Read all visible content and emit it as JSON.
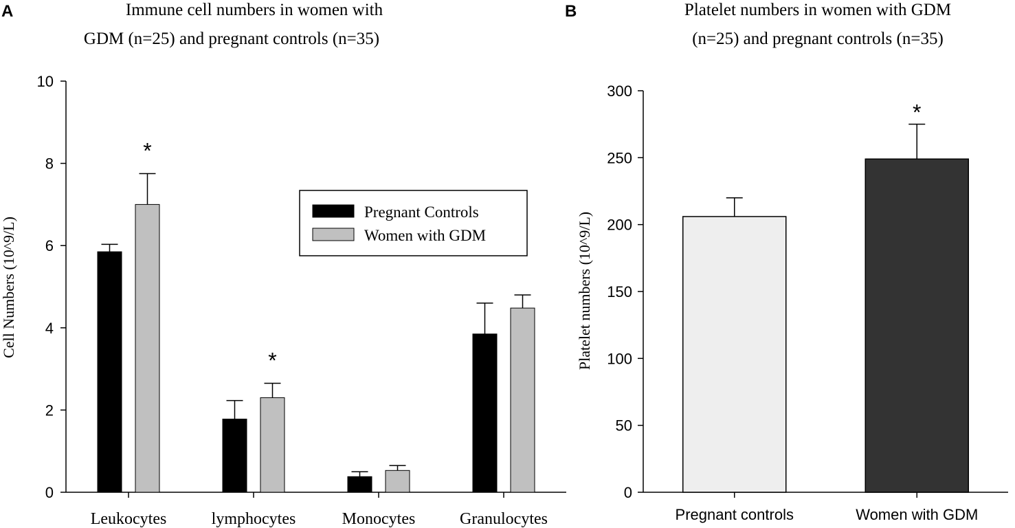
{
  "panel_a": {
    "label": "A",
    "legend": [
      "Pregnant Controls",
      "Women with GDM"
    ]
  },
  "panel_b": {
    "label": "B"
  },
  "colors": {
    "controls_a": "#000000",
    "gdm_a": "#c0c0c0",
    "controls_b": "#eeeeee",
    "gdm_b": "#333333"
  },
  "chart_data": [
    {
      "type": "bar",
      "title": "Immune cell numbers in women with GDM (n=25) and pregnant controls (n=35)",
      "title_lines": [
        "Immune cell numbers in women with",
        "GDM (n=25) and pregnant controls (n=35)"
      ],
      "xlabel": "",
      "ylabel": "Cell Numbers (10^9/L)",
      "ylim": [
        0,
        10
      ],
      "yticks": [
        "0",
        "2",
        "4",
        "6",
        "8",
        "10"
      ],
      "categories": [
        "Leukocytes",
        "lymphocytes",
        "Monocytes",
        "Granulocytes"
      ],
      "series": [
        {
          "name": "Pregnant Controls",
          "values": [
            5.85,
            1.78,
            0.38,
            3.85
          ],
          "errors": [
            0.18,
            0.45,
            0.12,
            0.75
          ],
          "significant": [
            false,
            false,
            false,
            false
          ]
        },
        {
          "name": "Women with GDM",
          "values": [
            7.0,
            2.3,
            0.53,
            4.48
          ],
          "errors": [
            0.75,
            0.35,
            0.12,
            0.32
          ],
          "significant": [
            true,
            true,
            false,
            false
          ]
        }
      ],
      "significance_marker": "*"
    },
    {
      "type": "bar",
      "title": "Platelet numbers in women with GDM (n=25) and pregnant controls (n=35)",
      "title_lines": [
        "Platelet numbers in women with GDM",
        "(n=25) and pregnant controls (n=35)"
      ],
      "xlabel": "",
      "ylabel": "Platelet numbers (10^9/L)",
      "ylim": [
        0,
        300
      ],
      "yticks": [
        "0",
        "50",
        "100",
        "150",
        "200",
        "250",
        "300"
      ],
      "categories": [
        "Pregnant controls",
        "Women with GDM"
      ],
      "values": [
        206,
        249
      ],
      "errors": [
        14,
        26
      ],
      "significant": [
        false,
        true
      ],
      "significance_marker": "*"
    }
  ]
}
